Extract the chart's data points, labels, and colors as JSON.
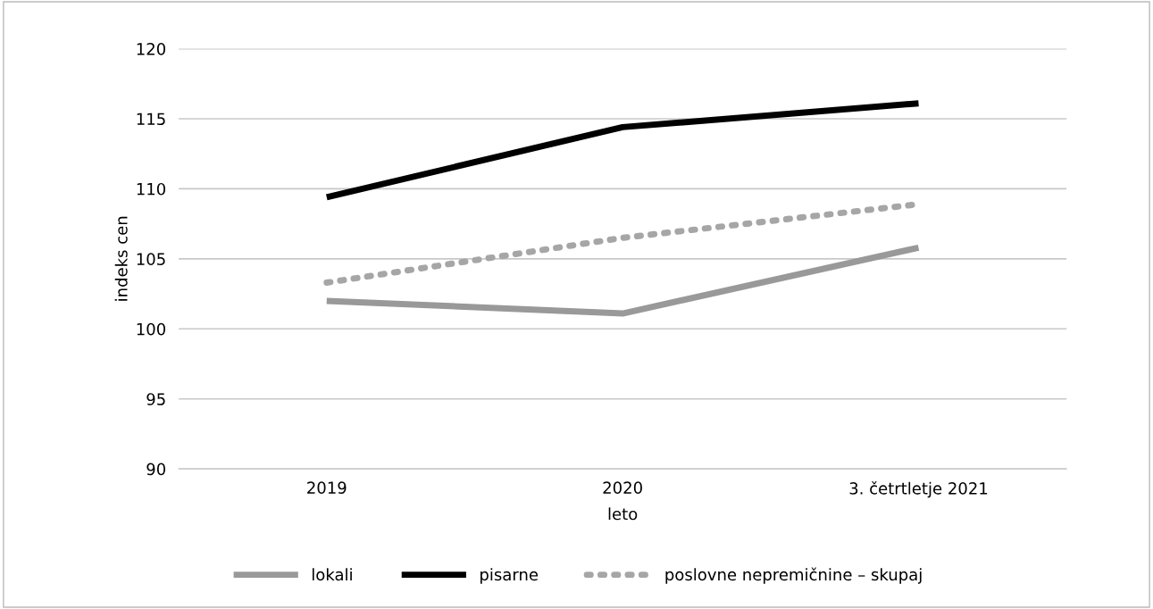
{
  "chart_data": {
    "type": "line",
    "xlabel": "leto",
    "ylabel": "indeks cen",
    "categories": [
      "2019",
      "2020",
      "3. četrtletje 2021"
    ],
    "series": [
      {
        "name": "lokali",
        "color": "#999999",
        "values": [
          102.0,
          101.1,
          105.8
        ],
        "line_style": "solid"
      },
      {
        "name": "pisarne",
        "color": "#000000",
        "values": [
          109.4,
          114.4,
          116.1
        ],
        "line_style": "solid"
      },
      {
        "name": "poslovne nepremičnine – skupaj",
        "color": "#a6a6a6",
        "values": [
          103.3,
          106.5,
          108.9
        ],
        "line_style": "dotted"
      }
    ],
    "ylim": [
      90,
      120
    ],
    "yticks": [
      90,
      95,
      100,
      105,
      110,
      115,
      120
    ],
    "grid": "y",
    "legend": "bottom",
    "marker": "none"
  }
}
